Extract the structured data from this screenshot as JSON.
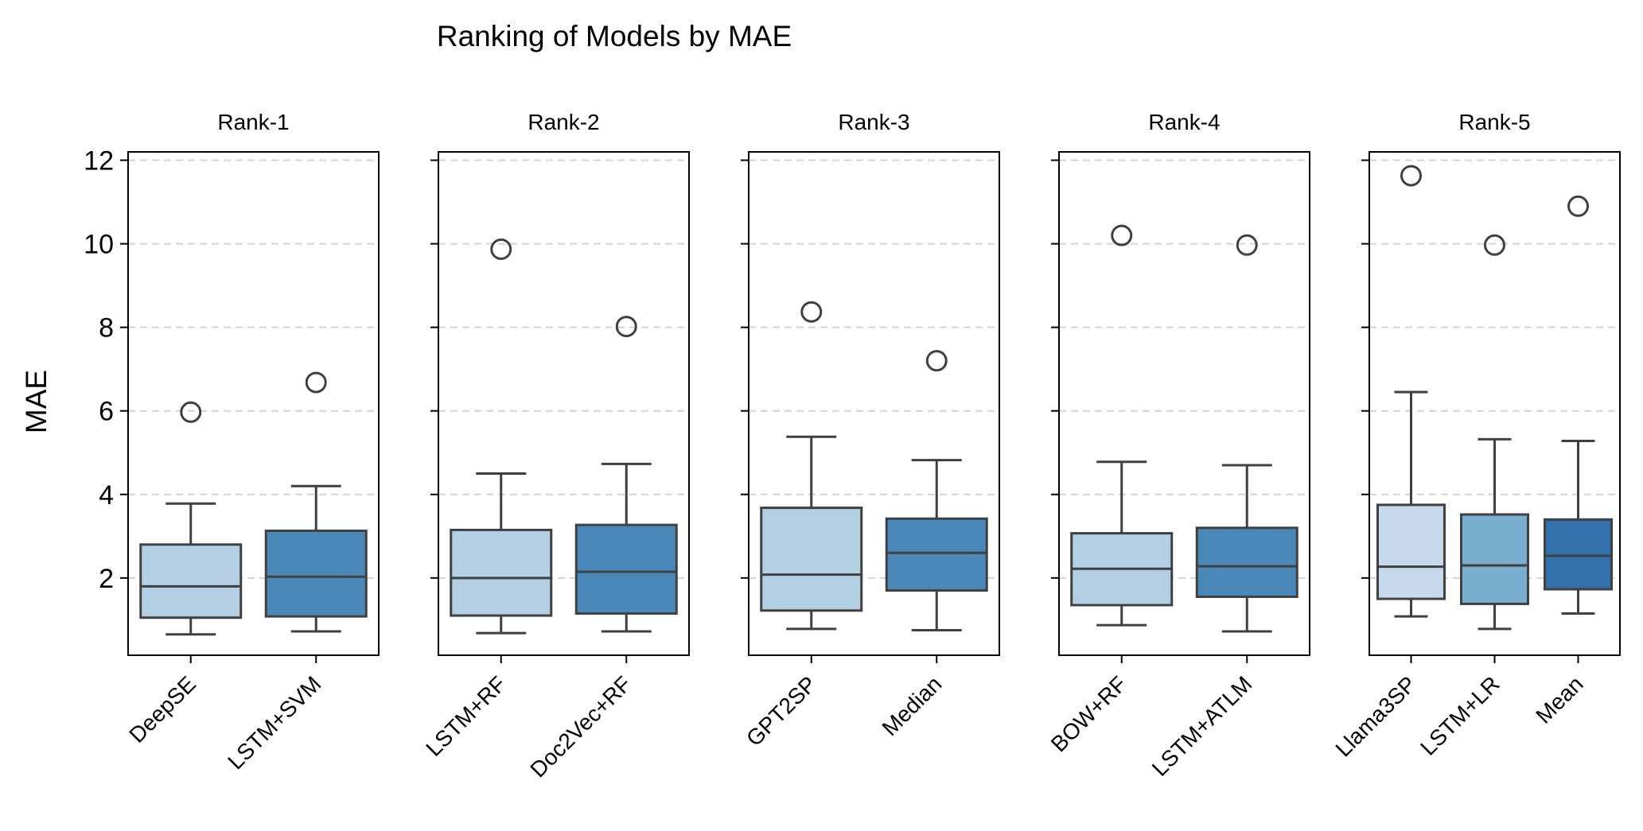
{
  "chart_data": {
    "type": "box",
    "title": "Ranking of Models by MAE",
    "ylabel": "MAE",
    "ylim": [
      0.15,
      12.2
    ],
    "yticks": [
      "2",
      "4",
      "6",
      "8",
      "10",
      "12"
    ],
    "grid": "horizontal dashed",
    "panels": [
      {
        "title": "Rank-1",
        "boxes": [
          {
            "name": "DeepSE",
            "color": "#b3cfe3",
            "whisker_low": 0.65,
            "q1": 1.05,
            "median": 1.8,
            "q3": 2.8,
            "whisker_high": 3.78,
            "outliers": [
              5.97
            ]
          },
          {
            "name": "LSTM+SVM",
            "color": "#4a88ba",
            "whisker_low": 0.72,
            "q1": 1.08,
            "median": 2.03,
            "q3": 3.13,
            "whisker_high": 4.2,
            "outliers": [
              6.68
            ]
          }
        ]
      },
      {
        "title": "Rank-2",
        "boxes": [
          {
            "name": "LSTM+RF",
            "color": "#b3cfe3",
            "whisker_low": 0.68,
            "q1": 1.1,
            "median": 2.0,
            "q3": 3.15,
            "whisker_high": 4.5,
            "outliers": [
              9.87
            ]
          },
          {
            "name": "Doc2Vec+RF",
            "color": "#4a88ba",
            "whisker_low": 0.72,
            "q1": 1.15,
            "median": 2.15,
            "q3": 3.27,
            "whisker_high": 4.73,
            "outliers": [
              8.02
            ]
          }
        ]
      },
      {
        "title": "Rank-3",
        "boxes": [
          {
            "name": "GPT2SP",
            "color": "#b3cfe3",
            "whisker_low": 0.78,
            "q1": 1.22,
            "median": 2.08,
            "q3": 3.68,
            "whisker_high": 5.38,
            "outliers": [
              8.37
            ]
          },
          {
            "name": "Median",
            "color": "#4a88ba",
            "whisker_low": 0.75,
            "q1": 1.7,
            "median": 2.6,
            "q3": 3.42,
            "whisker_high": 4.82,
            "outliers": [
              7.2
            ]
          }
        ]
      },
      {
        "title": "Rank-4",
        "boxes": [
          {
            "name": "BOW+RF",
            "color": "#b3cfe3",
            "whisker_low": 0.87,
            "q1": 1.35,
            "median": 2.22,
            "q3": 3.07,
            "whisker_high": 4.78,
            "outliers": [
              10.2
            ]
          },
          {
            "name": "LSTM+ATLM",
            "color": "#4a88ba",
            "whisker_low": 0.72,
            "q1": 1.55,
            "median": 2.28,
            "q3": 3.2,
            "whisker_high": 4.7,
            "outliers": [
              9.97
            ]
          }
        ]
      },
      {
        "title": "Rank-5",
        "boxes": [
          {
            "name": "Llama3SP",
            "color": "#c6d9ec",
            "whisker_low": 1.08,
            "q1": 1.5,
            "median": 2.27,
            "q3": 3.75,
            "whisker_high": 6.45,
            "outliers": [
              11.63
            ]
          },
          {
            "name": "LSTM+LR",
            "color": "#79aed1",
            "whisker_low": 0.78,
            "q1": 1.38,
            "median": 2.3,
            "q3": 3.52,
            "whisker_high": 5.32,
            "outliers": [
              9.97
            ]
          },
          {
            "name": "Mean",
            "color": "#3372ad",
            "whisker_low": 1.15,
            "q1": 1.73,
            "median": 2.53,
            "q3": 3.4,
            "whisker_high": 5.28,
            "outliers": [
              10.9
            ]
          }
        ]
      }
    ]
  }
}
